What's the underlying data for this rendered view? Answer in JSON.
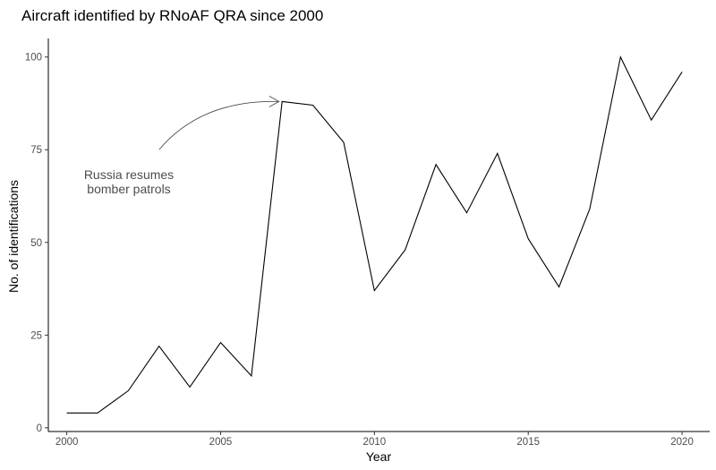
{
  "chart_data": {
    "type": "line",
    "title": "Aircraft identified by RNoAF QRA since 2000",
    "xlabel": "Year",
    "ylabel": "No. of identifications",
    "xlim": [
      1999.4,
      2020.9
    ],
    "ylim": [
      -1,
      105
    ],
    "x_ticks": [
      2000,
      2005,
      2010,
      2015,
      2020
    ],
    "y_ticks": [
      0,
      25,
      50,
      75,
      100
    ],
    "grid": false,
    "series": [
      {
        "x": [
          2000,
          2001,
          2002,
          2003,
          2004,
          2005,
          2006,
          2007,
          2008,
          2009,
          2010,
          2011,
          2012,
          2013,
          2014,
          2015,
          2016,
          2017,
          2018,
          2019,
          2020
        ],
        "y": [
          4,
          4,
          10,
          22,
          11,
          23,
          14,
          88,
          87,
          77,
          37,
          48,
          71,
          58,
          74,
          51,
          38,
          59,
          100,
          83,
          96
        ]
      }
    ],
    "annotation": {
      "lines": [
        "Russia resumes",
        "bomber patrols"
      ],
      "arrow_from": [
        2003,
        75
      ],
      "arrow_to": [
        2006.9,
        88
      ]
    },
    "colors": {
      "line": "#000000",
      "annotation": "#4d4d4d",
      "ticks": "#4d4d4d"
    }
  }
}
